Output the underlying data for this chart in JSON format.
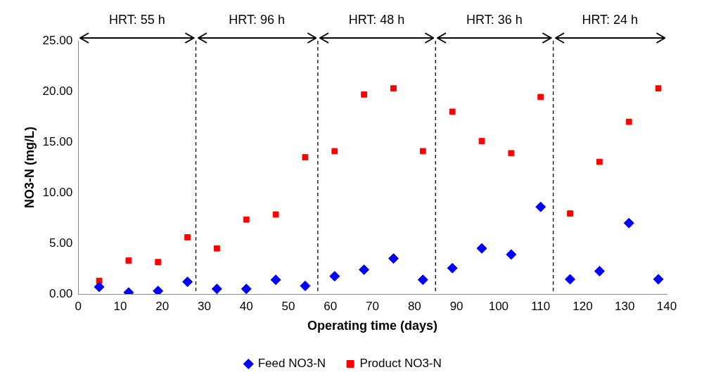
{
  "chart_data": {
    "type": "scatter",
    "xlabel": "Operating time (days)",
    "ylabel": "NO3-N (mg/L)",
    "xlim": [
      0,
      140
    ],
    "xticks": [
      0,
      10,
      20,
      30,
      40,
      50,
      60,
      70,
      80,
      90,
      100,
      110,
      120,
      130,
      140
    ],
    "ylim": [
      0,
      25
    ],
    "yticks": [
      {
        "value": 0,
        "label": "0.00"
      },
      {
        "value": 5,
        "label": "5.00"
      },
      {
        "value": 10,
        "label": "10.00"
      },
      {
        "value": 15,
        "label": "15.00"
      },
      {
        "value": 20,
        "label": "20.00"
      },
      {
        "value": 25,
        "label": "25.00"
      }
    ],
    "x": [
      5,
      12,
      19,
      26,
      33,
      40,
      47,
      54,
      61,
      68,
      75,
      82,
      89,
      96,
      103,
      110,
      117,
      124,
      131,
      138
    ],
    "series": [
      {
        "name": "Feed NO3-N",
        "color": "#0000ff",
        "marker": "diamond",
        "values": [
          0.7,
          0.15,
          0.3,
          1.2,
          0.5,
          0.5,
          1.4,
          0.8,
          1.75,
          2.4,
          3.5,
          1.4,
          2.55,
          4.5,
          3.9,
          8.6,
          1.45,
          2.25,
          7.0,
          1.45
        ]
      },
      {
        "name": "Product NO3-N",
        "color": "#ff0000",
        "marker": "square",
        "values": [
          1.3,
          3.3,
          3.15,
          5.6,
          4.5,
          7.35,
          7.85,
          13.5,
          14.1,
          19.7,
          20.3,
          14.1,
          18.0,
          15.1,
          13.9,
          19.45,
          7.95,
          13.05,
          17.0,
          20.3
        ]
      }
    ],
    "ref_lines": [
      {
        "axis": "x",
        "value": 28,
        "color": "#000000",
        "line_style": "dashed"
      },
      {
        "axis": "x",
        "value": 57,
        "color": "#000000",
        "line_style": "dashed"
      },
      {
        "axis": "x",
        "value": 85,
        "color": "#000000",
        "line_style": "dashed"
      },
      {
        "axis": "x",
        "value": 113,
        "color": "#000000",
        "line_style": "dashed"
      }
    ],
    "annotations": [
      "HRT: 55 h",
      "HRT: 96 h",
      "HRT: 48 h",
      "HRT: 36 h",
      "HRT: 24 h"
    ],
    "grid": false,
    "legend": "bottom"
  }
}
